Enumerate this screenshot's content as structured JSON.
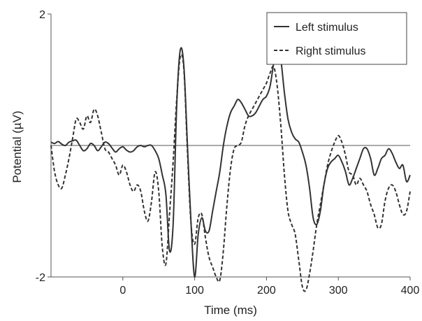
{
  "chart_data": {
    "type": "line",
    "title": "",
    "xlabel": "Time (ms)",
    "ylabel": "Potential (µV)",
    "xlim": [
      -100,
      400
    ],
    "ylim": [
      -2,
      2
    ],
    "x_ticks": [
      0,
      100,
      200,
      300,
      400
    ],
    "x_tick_labels": [
      "0",
      "100",
      "200",
      "300",
      "400"
    ],
    "y_ticks": [
      -2,
      2
    ],
    "y_tick_labels": [
      "-2",
      "2"
    ],
    "baseline": 0,
    "grid": false,
    "legend_position": "top-right",
    "series": [
      {
        "name": "Left stimulus",
        "style": "solid",
        "color": "#333333",
        "x": [
          -100,
          -95,
          -90,
          -85,
          -80,
          -75,
          -70,
          -65,
          -60,
          -55,
          -50,
          -45,
          -40,
          -35,
          -30,
          -25,
          -20,
          -15,
          -10,
          -5,
          0,
          5,
          10,
          15,
          20,
          25,
          30,
          35,
          40,
          45,
          50,
          55,
          60,
          65,
          70,
          75,
          80,
          85,
          90,
          95,
          100,
          105,
          110,
          115,
          120,
          125,
          130,
          135,
          140,
          145,
          150,
          155,
          160,
          165,
          170,
          175,
          180,
          185,
          190,
          195,
          200,
          205,
          210,
          215,
          220,
          225,
          230,
          235,
          240,
          245,
          250,
          255,
          260,
          265,
          270,
          275,
          280,
          285,
          290,
          295,
          300,
          305,
          310,
          315,
          320,
          325,
          330,
          335,
          340,
          345,
          350,
          355,
          360,
          365,
          370,
          375,
          380,
          385,
          390,
          395,
          400
        ],
        "y": [
          0.05,
          0.03,
          0.06,
          0.02,
          0.0,
          0.05,
          0.07,
          0.08,
          0.0,
          -0.08,
          -0.05,
          0.03,
          0.0,
          -0.08,
          -0.02,
          0.05,
          0.03,
          -0.04,
          -0.1,
          -0.05,
          -0.02,
          -0.07,
          -0.1,
          -0.08,
          -0.02,
          0.0,
          -0.02,
          0.0,
          0.0,
          -0.08,
          -0.2,
          -0.45,
          -0.75,
          -1.6,
          -1.2,
          0.6,
          1.45,
          1.2,
          0.0,
          -1.2,
          -2.0,
          -1.35,
          -1.1,
          -1.3,
          -1.3,
          -1.0,
          -0.7,
          -0.4,
          0.0,
          0.3,
          0.5,
          0.6,
          0.7,
          0.65,
          0.55,
          0.45,
          0.45,
          0.5,
          0.6,
          0.7,
          0.75,
          0.9,
          1.25,
          1.5,
          1.3,
          0.8,
          0.4,
          0.2,
          0.1,
          0.05,
          -0.1,
          -0.3,
          -0.65,
          -1.1,
          -1.2,
          -1.0,
          -0.6,
          -0.35,
          -0.25,
          -0.2,
          -0.15,
          -0.25,
          -0.4,
          -0.6,
          -0.5,
          -0.35,
          -0.2,
          -0.05,
          -0.05,
          -0.2,
          -0.45,
          -0.35,
          -0.2,
          -0.15,
          -0.05,
          -0.12,
          -0.25,
          -0.35,
          -0.3,
          -0.55,
          -0.45
        ],
        "x_dense_note": ""
      },
      {
        "name": "Right stimulus",
        "style": "dashed",
        "color": "#333333",
        "x": [
          -100,
          -95,
          -90,
          -85,
          -80,
          -75,
          -70,
          -65,
          -60,
          -55,
          -50,
          -45,
          -40,
          -35,
          -30,
          -25,
          -20,
          -15,
          -10,
          -5,
          0,
          5,
          10,
          15,
          20,
          25,
          30,
          35,
          40,
          45,
          50,
          55,
          60,
          65,
          70,
          75,
          80,
          85,
          90,
          95,
          100,
          105,
          110,
          115,
          120,
          125,
          130,
          135,
          140,
          145,
          150,
          155,
          160,
          165,
          170,
          175,
          180,
          185,
          190,
          195,
          200,
          205,
          210,
          215,
          220,
          225,
          230,
          235,
          240,
          245,
          250,
          255,
          260,
          265,
          270,
          275,
          280,
          285,
          290,
          295,
          300,
          305,
          310,
          315,
          320,
          325,
          330,
          335,
          340,
          345,
          350,
          355,
          360,
          365,
          370,
          375,
          380,
          385,
          390,
          395,
          400
        ],
        "y": [
          0.0,
          -0.4,
          -0.6,
          -0.65,
          -0.45,
          -0.2,
          0.1,
          0.4,
          0.35,
          0.25,
          0.45,
          0.35,
          0.55,
          0.45,
          0.2,
          -0.05,
          -0.1,
          -0.2,
          -0.3,
          -0.45,
          -0.3,
          -0.4,
          -0.6,
          -0.7,
          -0.6,
          -0.7,
          -1.0,
          -1.15,
          -0.85,
          -0.4,
          -0.7,
          -1.55,
          -1.8,
          -1.05,
          -0.25,
          0.7,
          1.35,
          1.15,
          -0.1,
          -1.2,
          -1.5,
          -1.1,
          -1.05,
          -1.4,
          -1.7,
          -1.85,
          -2.0,
          -2.05,
          -1.6,
          -0.9,
          -0.35,
          -0.05,
          0.0,
          0.05,
          0.3,
          0.45,
          0.55,
          0.65,
          0.75,
          0.85,
          0.95,
          1.1,
          1.2,
          0.9,
          0.3,
          -0.45,
          -1.0,
          -1.2,
          -1.35,
          -1.75,
          -2.15,
          -2.2,
          -1.95,
          -1.6,
          -1.2,
          -0.9,
          -0.6,
          -0.3,
          -0.1,
          0.05,
          0.15,
          0.05,
          -0.15,
          -0.4,
          -0.45,
          -0.6,
          -0.5,
          -0.6,
          -0.7,
          -0.9,
          -1.05,
          -1.25,
          -1.2,
          -0.85,
          -0.65,
          -0.6,
          -0.7,
          -0.9,
          -1.05,
          -1.0,
          -0.7
        ]
      }
    ]
  }
}
